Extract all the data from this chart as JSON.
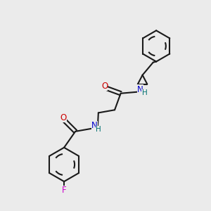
{
  "background_color": "#ebebeb",
  "bond_color": "#1a1a1a",
  "atom_colors": {
    "O": "#cc0000",
    "N": "#0000cc",
    "H": "#007070",
    "F": "#cc00cc",
    "C": "#1a1a1a"
  },
  "figsize": [
    3.0,
    3.0
  ],
  "dpi": 100
}
